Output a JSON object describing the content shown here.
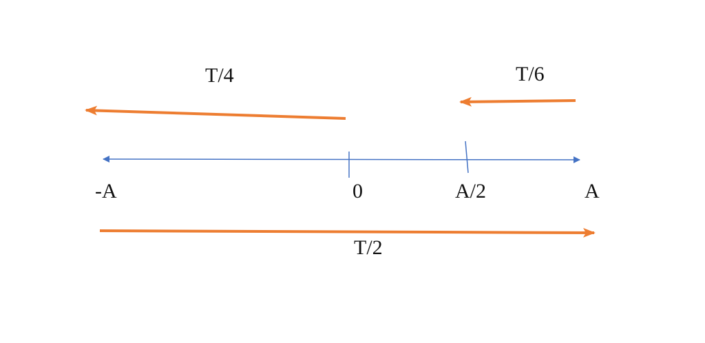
{
  "colors": {
    "axis": "#4472C4",
    "arrows": "#ED7D31",
    "text": "#111111"
  },
  "axis_labels": {
    "neg_a": "-A",
    "zero": "0",
    "half_a": "A/2",
    "a": "A"
  },
  "arrow_labels": {
    "t4": "T/4",
    "t6": "T/6",
    "t2": "T/2"
  }
}
